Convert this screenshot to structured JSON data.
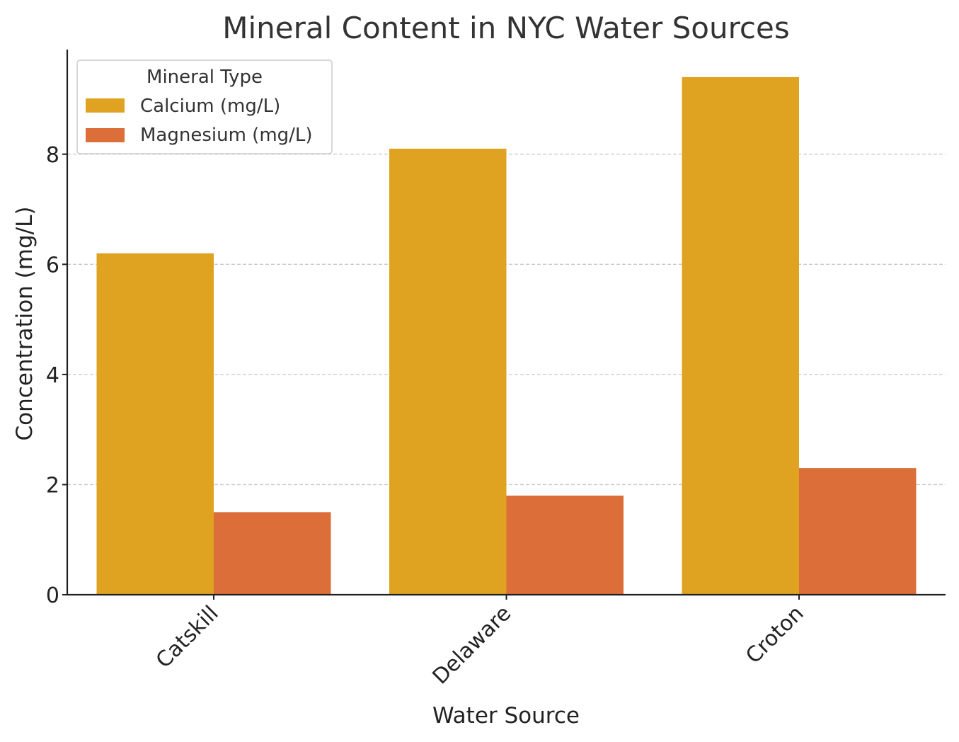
{
  "chart_data": {
    "type": "bar",
    "title": "Mineral Content in NYC Water Sources",
    "xlabel": "Water Source",
    "ylabel": "Concentration (mg/L)",
    "categories": [
      "Catskill",
      "Delaware",
      "Croton"
    ],
    "series": [
      {
        "name": "Calcium (mg/L)",
        "values": [
          6.2,
          8.1,
          9.4
        ],
        "color": "#DFA321"
      },
      {
        "name": "Magnesium (mg/L)",
        "values": [
          1.5,
          1.8,
          2.3
        ],
        "color": "#DB6E39"
      }
    ],
    "ylim": [
      0,
      9.9
    ],
    "yticks": [
      0,
      2,
      4,
      6,
      8
    ],
    "grid": "y-dashed",
    "legend": {
      "title": "Mineral Type",
      "placement": "top-left"
    }
  }
}
